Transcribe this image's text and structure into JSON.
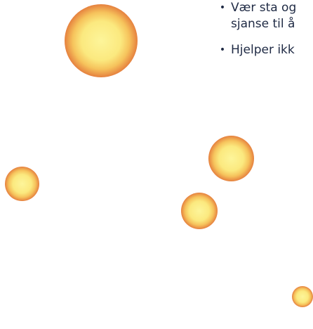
{
  "bullets": [
    {
      "lines": [
        "Vær sta og",
        "sjanse til å"
      ]
    },
    {
      "lines": [
        "Hjelper ikk"
      ]
    }
  ],
  "bullet_glyph": "•",
  "colors": {
    "orb_core": "#fdf59a",
    "orb_rim": "#b8142a",
    "text": "#1f2a44",
    "background": "#ffffff"
  }
}
